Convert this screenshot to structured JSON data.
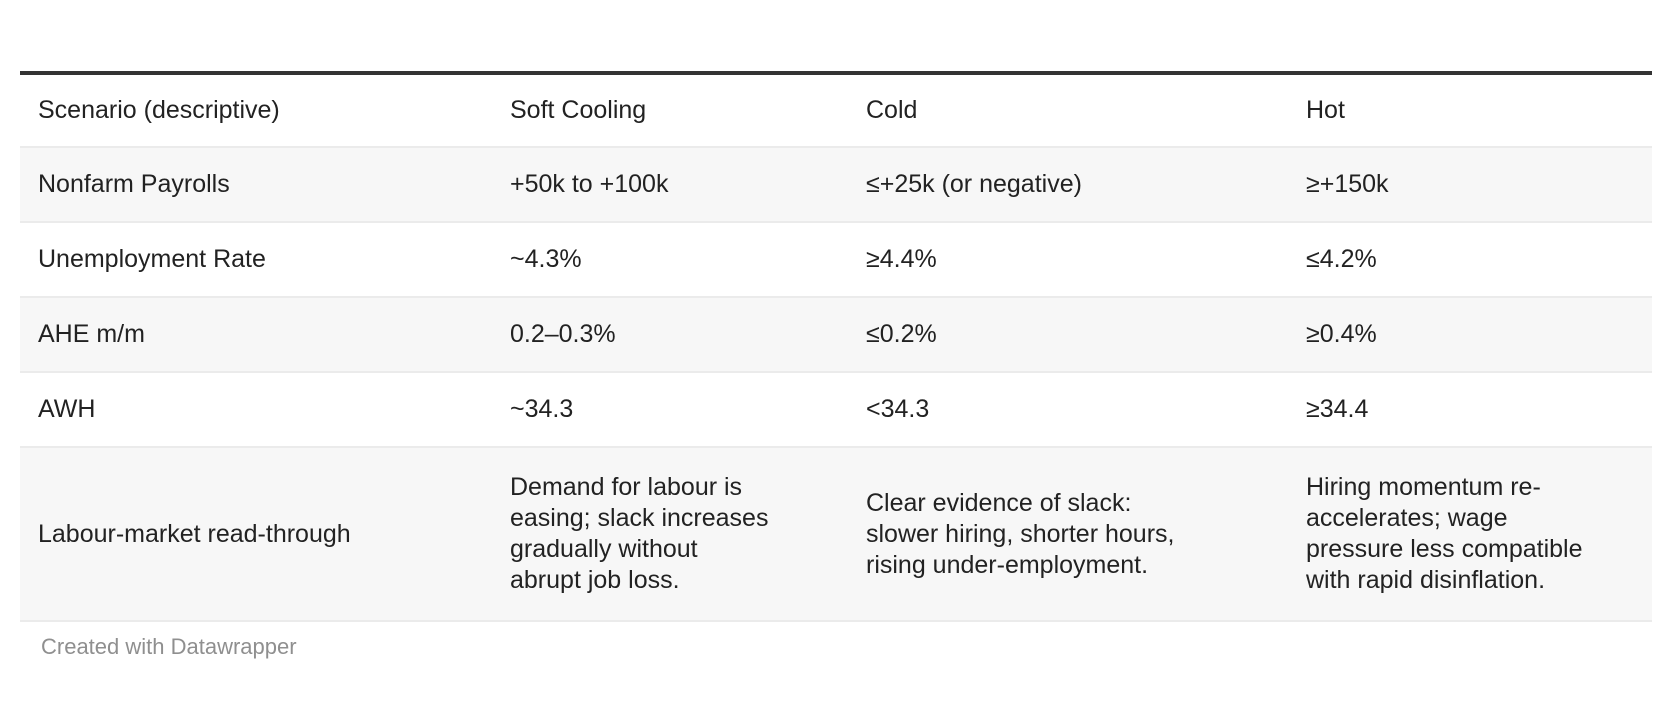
{
  "chart_data": {
    "type": "table",
    "columns": [
      "Scenario (descriptive)",
      "Soft Cooling",
      "Cold",
      "Hot"
    ],
    "rows": [
      [
        "Nonfarm Payrolls",
        "+50k to +100k",
        "≤+25k (or negative)",
        "≥+150k"
      ],
      [
        "Unemployment Rate",
        "~4.3%",
        "≥4.4%",
        "≤4.2%"
      ],
      [
        "AHE m/m",
        "0.2–0.3%",
        "≤0.2%",
        "≥0.4%"
      ],
      [
        "AWH",
        "~34.3",
        "<34.3",
        "≥34.4"
      ],
      [
        "Labour-market read-through",
        "Demand for labour is\neasing; slack increases\ngradually without\nabrupt job loss.",
        "Clear evidence of slack:\nslower hiring, shorter hours,\nrising under-employment.",
        "Hiring momentum re-\naccelerates; wage\npressure less compatible\nwith rapid disinflation."
      ]
    ],
    "title": "",
    "legend_position": "none",
    "grid": "row-separators"
  },
  "footer": {
    "attribution": "Created with Datawrapper"
  },
  "colors": {
    "top_border": "#333333",
    "row_stripe": "#f7f7f7",
    "separator": "#ebebeb",
    "text": "#222222",
    "footer_text": "#8f8f8f"
  }
}
